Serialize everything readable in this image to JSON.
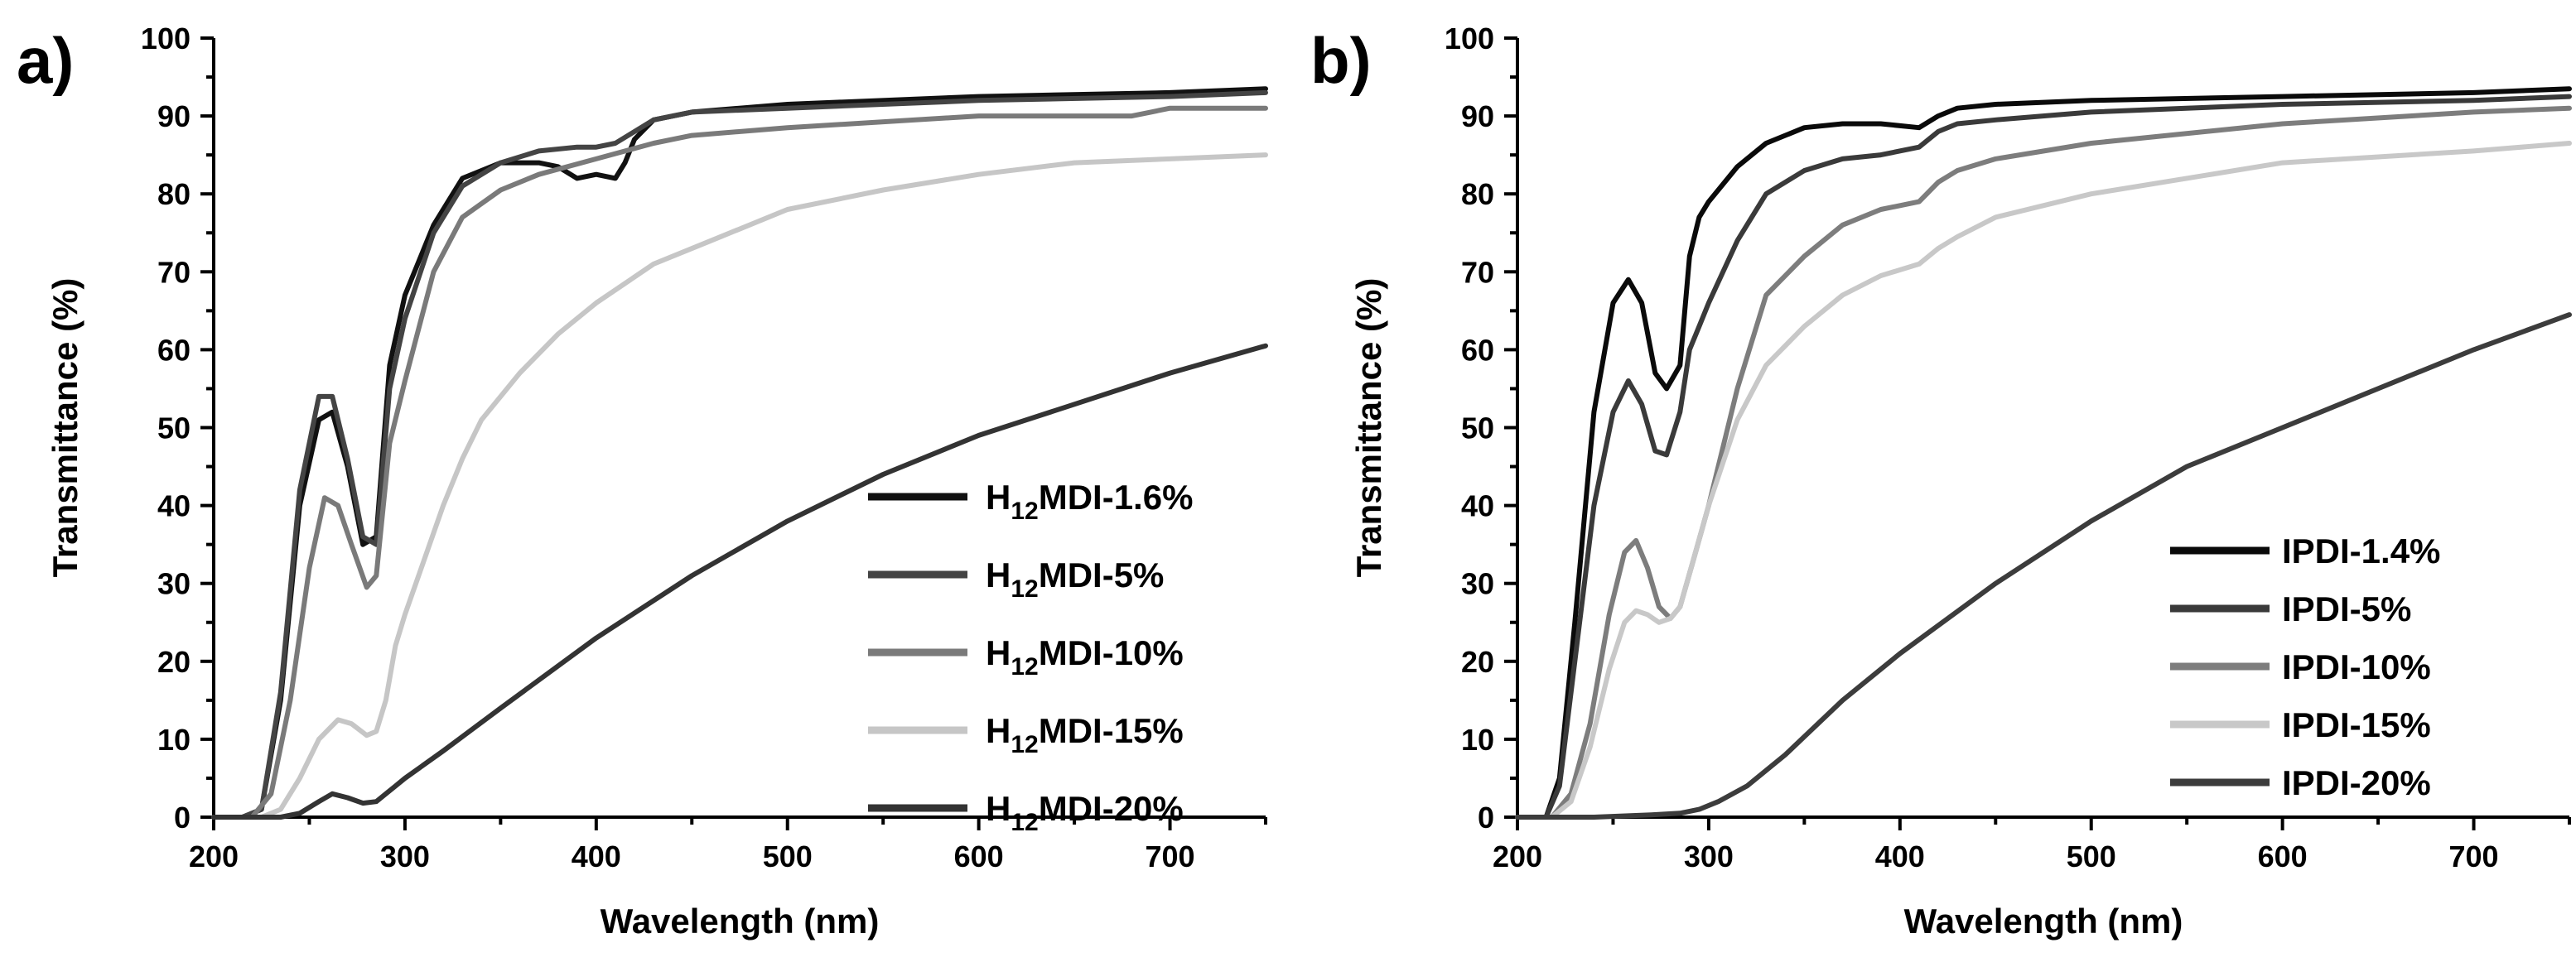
{
  "chart_data": [
    {
      "type": "line",
      "panel_label": "a)",
      "xlabel": "Wavelength (nm)",
      "ylabel": "Transmittance (%)",
      "xlim": [
        200,
        750
      ],
      "ylim": [
        0,
        100
      ],
      "xticks": [
        200,
        300,
        400,
        500,
        600,
        700
      ],
      "yticks": [
        0,
        10,
        20,
        30,
        40,
        50,
        60,
        70,
        80,
        90,
        100
      ],
      "legend_position": "middle-right",
      "series": [
        {
          "prefix": "H",
          "sub": "12",
          "suffix": "MDI-1.6%",
          "color": "#111111",
          "x": [
            200,
            215,
            225,
            235,
            245,
            255,
            262,
            270,
            278,
            285,
            292,
            300,
            315,
            330,
            350,
            370,
            380,
            390,
            400,
            410,
            415,
            420,
            430,
            450,
            500,
            600,
            700,
            750
          ],
          "y": [
            0,
            0,
            1,
            15,
            40,
            51,
            52,
            45,
            35,
            36,
            58,
            67,
            76,
            82,
            84,
            84,
            83.5,
            82,
            82.5,
            82,
            84,
            87,
            89.5,
            90.5,
            91.5,
            92.5,
            93,
            93.5
          ]
        },
        {
          "prefix": "H",
          "sub": "12",
          "suffix": "MDI-5%",
          "color": "#444444",
          "x": [
            200,
            215,
            225,
            235,
            245,
            255,
            262,
            270,
            278,
            285,
            292,
            300,
            315,
            330,
            350,
            370,
            390,
            400,
            410,
            420,
            430,
            450,
            500,
            600,
            700,
            750
          ],
          "y": [
            0,
            0,
            1,
            16,
            42,
            54,
            54,
            46,
            36,
            35,
            55,
            64,
            75,
            81,
            84,
            85.5,
            86,
            86,
            86.5,
            88,
            89.5,
            90.5,
            91,
            92,
            92.5,
            93
          ]
        },
        {
          "prefix": "H",
          "sub": "12",
          "suffix": "MDI-10%",
          "color": "#7a7a7a",
          "x": [
            200,
            220,
            230,
            240,
            250,
            258,
            265,
            272,
            280,
            285,
            292,
            300,
            315,
            330,
            350,
            370,
            400,
            430,
            450,
            500,
            600,
            680,
            690,
            700,
            750
          ],
          "y": [
            0,
            0,
            3,
            15,
            32,
            41,
            40,
            35,
            29.5,
            31,
            48,
            56,
            70,
            77,
            80.5,
            82.5,
            84.5,
            86.5,
            87.5,
            88.5,
            90,
            90,
            90.5,
            91,
            91
          ]
        },
        {
          "prefix": "H",
          "sub": "12",
          "suffix": "MDI-15%",
          "color": "#c6c6c6",
          "x": [
            200,
            225,
            235,
            245,
            255,
            265,
            272,
            280,
            285,
            290,
            295,
            300,
            310,
            320,
            330,
            340,
            360,
            380,
            400,
            430,
            460,
            500,
            550,
            600,
            650,
            700,
            750
          ],
          "y": [
            0,
            0,
            1,
            5,
            10,
            12.5,
            12,
            10.5,
            11,
            15,
            22,
            26,
            33,
            40,
            46,
            51,
            57,
            62,
            66,
            71,
            74,
            78,
            80.5,
            82.5,
            84,
            84.5,
            85
          ]
        },
        {
          "prefix": "H",
          "sub": "12",
          "suffix": "MDI-20%",
          "color": "#333333",
          "x": [
            200,
            235,
            245,
            255,
            262,
            270,
            278,
            285,
            290,
            295,
            300,
            320,
            350,
            400,
            450,
            500,
            550,
            600,
            650,
            700,
            750
          ],
          "y": [
            0,
            0,
            0.5,
            2,
            3,
            2.5,
            1.8,
            2,
            3,
            4,
            5,
            8.5,
            14,
            23,
            31,
            38,
            44,
            49,
            53,
            57,
            60.5
          ]
        }
      ]
    },
    {
      "type": "line",
      "panel_label": "b)",
      "xlabel": "Wavelength (nm)",
      "ylabel": "Transmittance (%)",
      "xlim": [
        200,
        750
      ],
      "ylim": [
        0,
        100
      ],
      "xticks": [
        200,
        300,
        400,
        500,
        600,
        700
      ],
      "yticks": [
        0,
        10,
        20,
        30,
        40,
        50,
        60,
        70,
        80,
        90,
        100
      ],
      "legend_position": "bottom-right",
      "series": [
        {
          "prefix": "",
          "sub": "",
          "suffix": "IPDI-1.4%",
          "color": "#0a0a0a",
          "x": [
            200,
            215,
            222,
            230,
            240,
            250,
            258,
            265,
            272,
            278,
            285,
            290,
            295,
            300,
            315,
            330,
            350,
            370,
            390,
            410,
            420,
            430,
            450,
            500,
            600,
            700,
            750
          ],
          "y": [
            0,
            0,
            5,
            25,
            52,
            66,
            69,
            66,
            57,
            55,
            58,
            72,
            77,
            79,
            83.5,
            86.5,
            88.5,
            89,
            89,
            88.5,
            90,
            91,
            91.5,
            92,
            92.5,
            93,
            93.5
          ]
        },
        {
          "prefix": "",
          "sub": "",
          "suffix": "IPDI-5%",
          "color": "#3a3a3a",
          "x": [
            200,
            215,
            222,
            230,
            240,
            250,
            258,
            265,
            272,
            278,
            285,
            290,
            295,
            300,
            315,
            330,
            350,
            370,
            390,
            410,
            420,
            430,
            450,
            500,
            600,
            700,
            750
          ],
          "y": [
            0,
            0,
            4,
            20,
            40,
            52,
            56,
            53,
            47,
            46.5,
            52,
            60,
            63,
            66,
            74,
            80,
            83,
            84.5,
            85,
            86,
            88,
            89,
            89.5,
            90.5,
            91.5,
            92,
            92.5
          ]
        },
        {
          "prefix": "",
          "sub": "",
          "suffix": "IPDI-10%",
          "color": "#7d7d7d",
          "x": [
            200,
            218,
            228,
            238,
            248,
            256,
            262,
            268,
            274,
            280,
            285,
            292,
            300,
            315,
            330,
            350,
            370,
            390,
            410,
            420,
            430,
            450,
            500,
            600,
            700,
            750
          ],
          "y": [
            0,
            0,
            3,
            12,
            26,
            34,
            35.5,
            32,
            27,
            25.5,
            27,
            33,
            40,
            55,
            67,
            72,
            76,
            78,
            79,
            81.5,
            83,
            84.5,
            86.5,
            89,
            90.5,
            91
          ]
        },
        {
          "prefix": "",
          "sub": "",
          "suffix": "IPDI-15%",
          "color": "#c8c8c8",
          "x": [
            200,
            218,
            228,
            238,
            248,
            256,
            262,
            268,
            274,
            280,
            285,
            292,
            300,
            315,
            330,
            350,
            370,
            390,
            410,
            420,
            430,
            450,
            500,
            600,
            700,
            750
          ],
          "y": [
            0,
            0,
            2,
            9,
            19,
            25,
            26.5,
            26,
            25,
            25.5,
            27,
            33,
            40,
            51,
            58,
            63,
            67,
            69.5,
            71,
            73,
            74.5,
            77,
            80,
            84,
            85.5,
            86.5
          ]
        },
        {
          "prefix": "",
          "sub": "",
          "suffix": "IPDI-20%",
          "color": "#3c3c3c",
          "x": [
            200,
            240,
            270,
            285,
            295,
            305,
            320,
            340,
            370,
            400,
            450,
            500,
            550,
            600,
            650,
            700,
            750
          ],
          "y": [
            0,
            0,
            0.3,
            0.5,
            1,
            2,
            4,
            8,
            15,
            21,
            30,
            38,
            45,
            50,
            55,
            60,
            64.5
          ]
        }
      ]
    }
  ]
}
